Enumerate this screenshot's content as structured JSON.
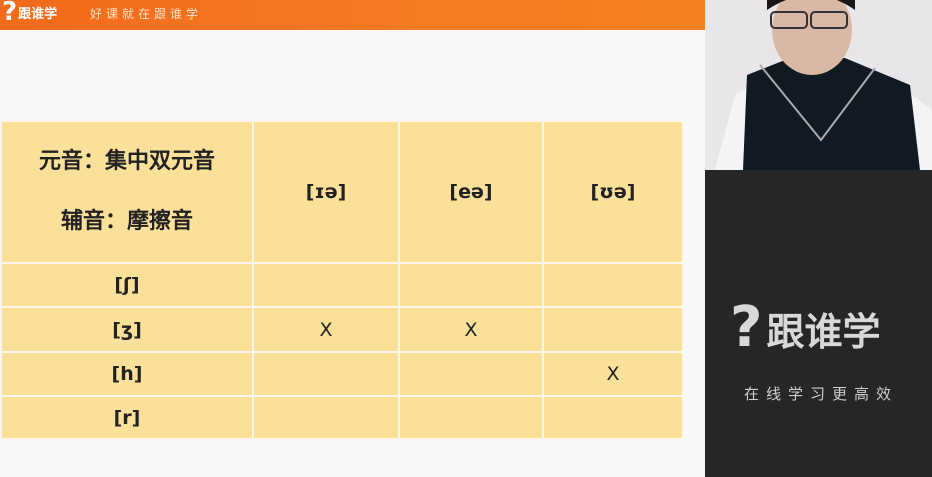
{
  "banner": {
    "logo_text": "跟谁学",
    "slogan": "好课就在跟谁学",
    "color": "#f26a1b"
  },
  "table": {
    "corner": [
      "元音：集中双元音",
      "辅音：摩擦音"
    ],
    "columns": [
      "[ɪə]",
      "[eə]",
      "[ʊə]"
    ],
    "rows": [
      {
        "label": "[ʃ]",
        "cells": [
          "",
          "",
          ""
        ]
      },
      {
        "label": "[ʒ]",
        "cells": [
          "X",
          "X",
          ""
        ]
      },
      {
        "label": "[h]",
        "cells": [
          "",
          "",
          "X"
        ]
      },
      {
        "label": "[r]",
        "cells": [
          "",
          "",
          ""
        ]
      }
    ],
    "cell_color": "#fbe09a"
  },
  "side": {
    "brand": "跟谁学",
    "tagline": "在线学习更高效"
  }
}
